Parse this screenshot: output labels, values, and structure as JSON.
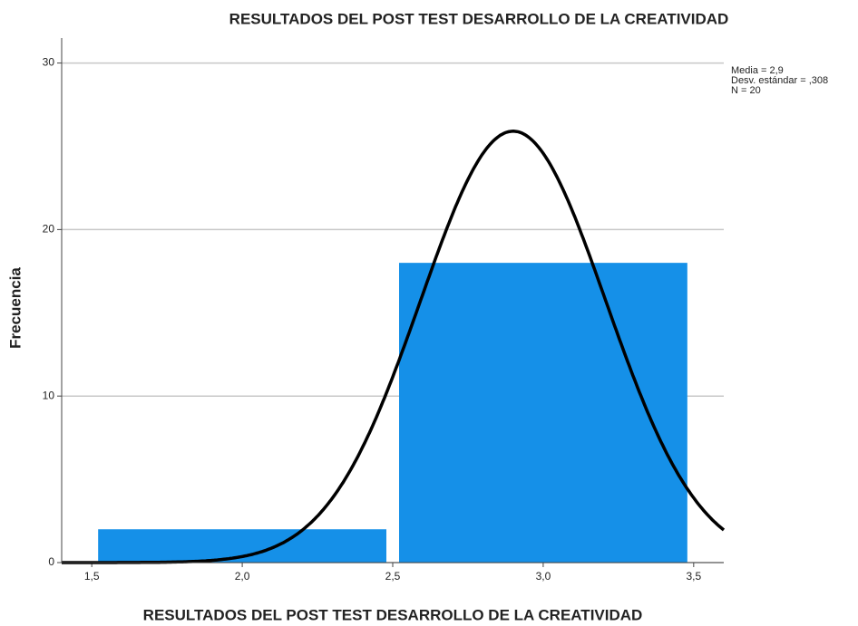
{
  "chart_data": {
    "type": "histogram",
    "title": "RESULTADOS DEL POST TEST DESARROLLO DE LA CREATIVIDAD",
    "x_label": "RESULTADOS DEL POST TEST DESARROLLO DE LA CREATIVIDAD",
    "y_label": "Frecuencia",
    "bins": [
      1.5,
      2.5,
      3.5
    ],
    "values": [
      2,
      18
    ],
    "color": "#1590e8",
    "xlim": [
      1.4,
      3.6
    ],
    "xticks": [
      {
        "value": 1.5,
        "label": "1,5"
      },
      {
        "value": 2.0,
        "label": "2,0"
      },
      {
        "value": 2.5,
        "label": "2,5"
      },
      {
        "value": 3.0,
        "label": "3,0"
      },
      {
        "value": 3.5,
        "label": "3,5"
      }
    ],
    "ylim": [
      0,
      31.5
    ],
    "yticks": [
      0,
      10,
      20,
      30
    ],
    "grid": true,
    "normal_curve": [
      {
        "label": "Media = 2,9",
        "value": 2.9
      },
      {
        "label": "Desv. estándar = ,308",
        "value": 0.308
      },
      {
        "label": "N = 20",
        "value": 20
      }
    ]
  }
}
